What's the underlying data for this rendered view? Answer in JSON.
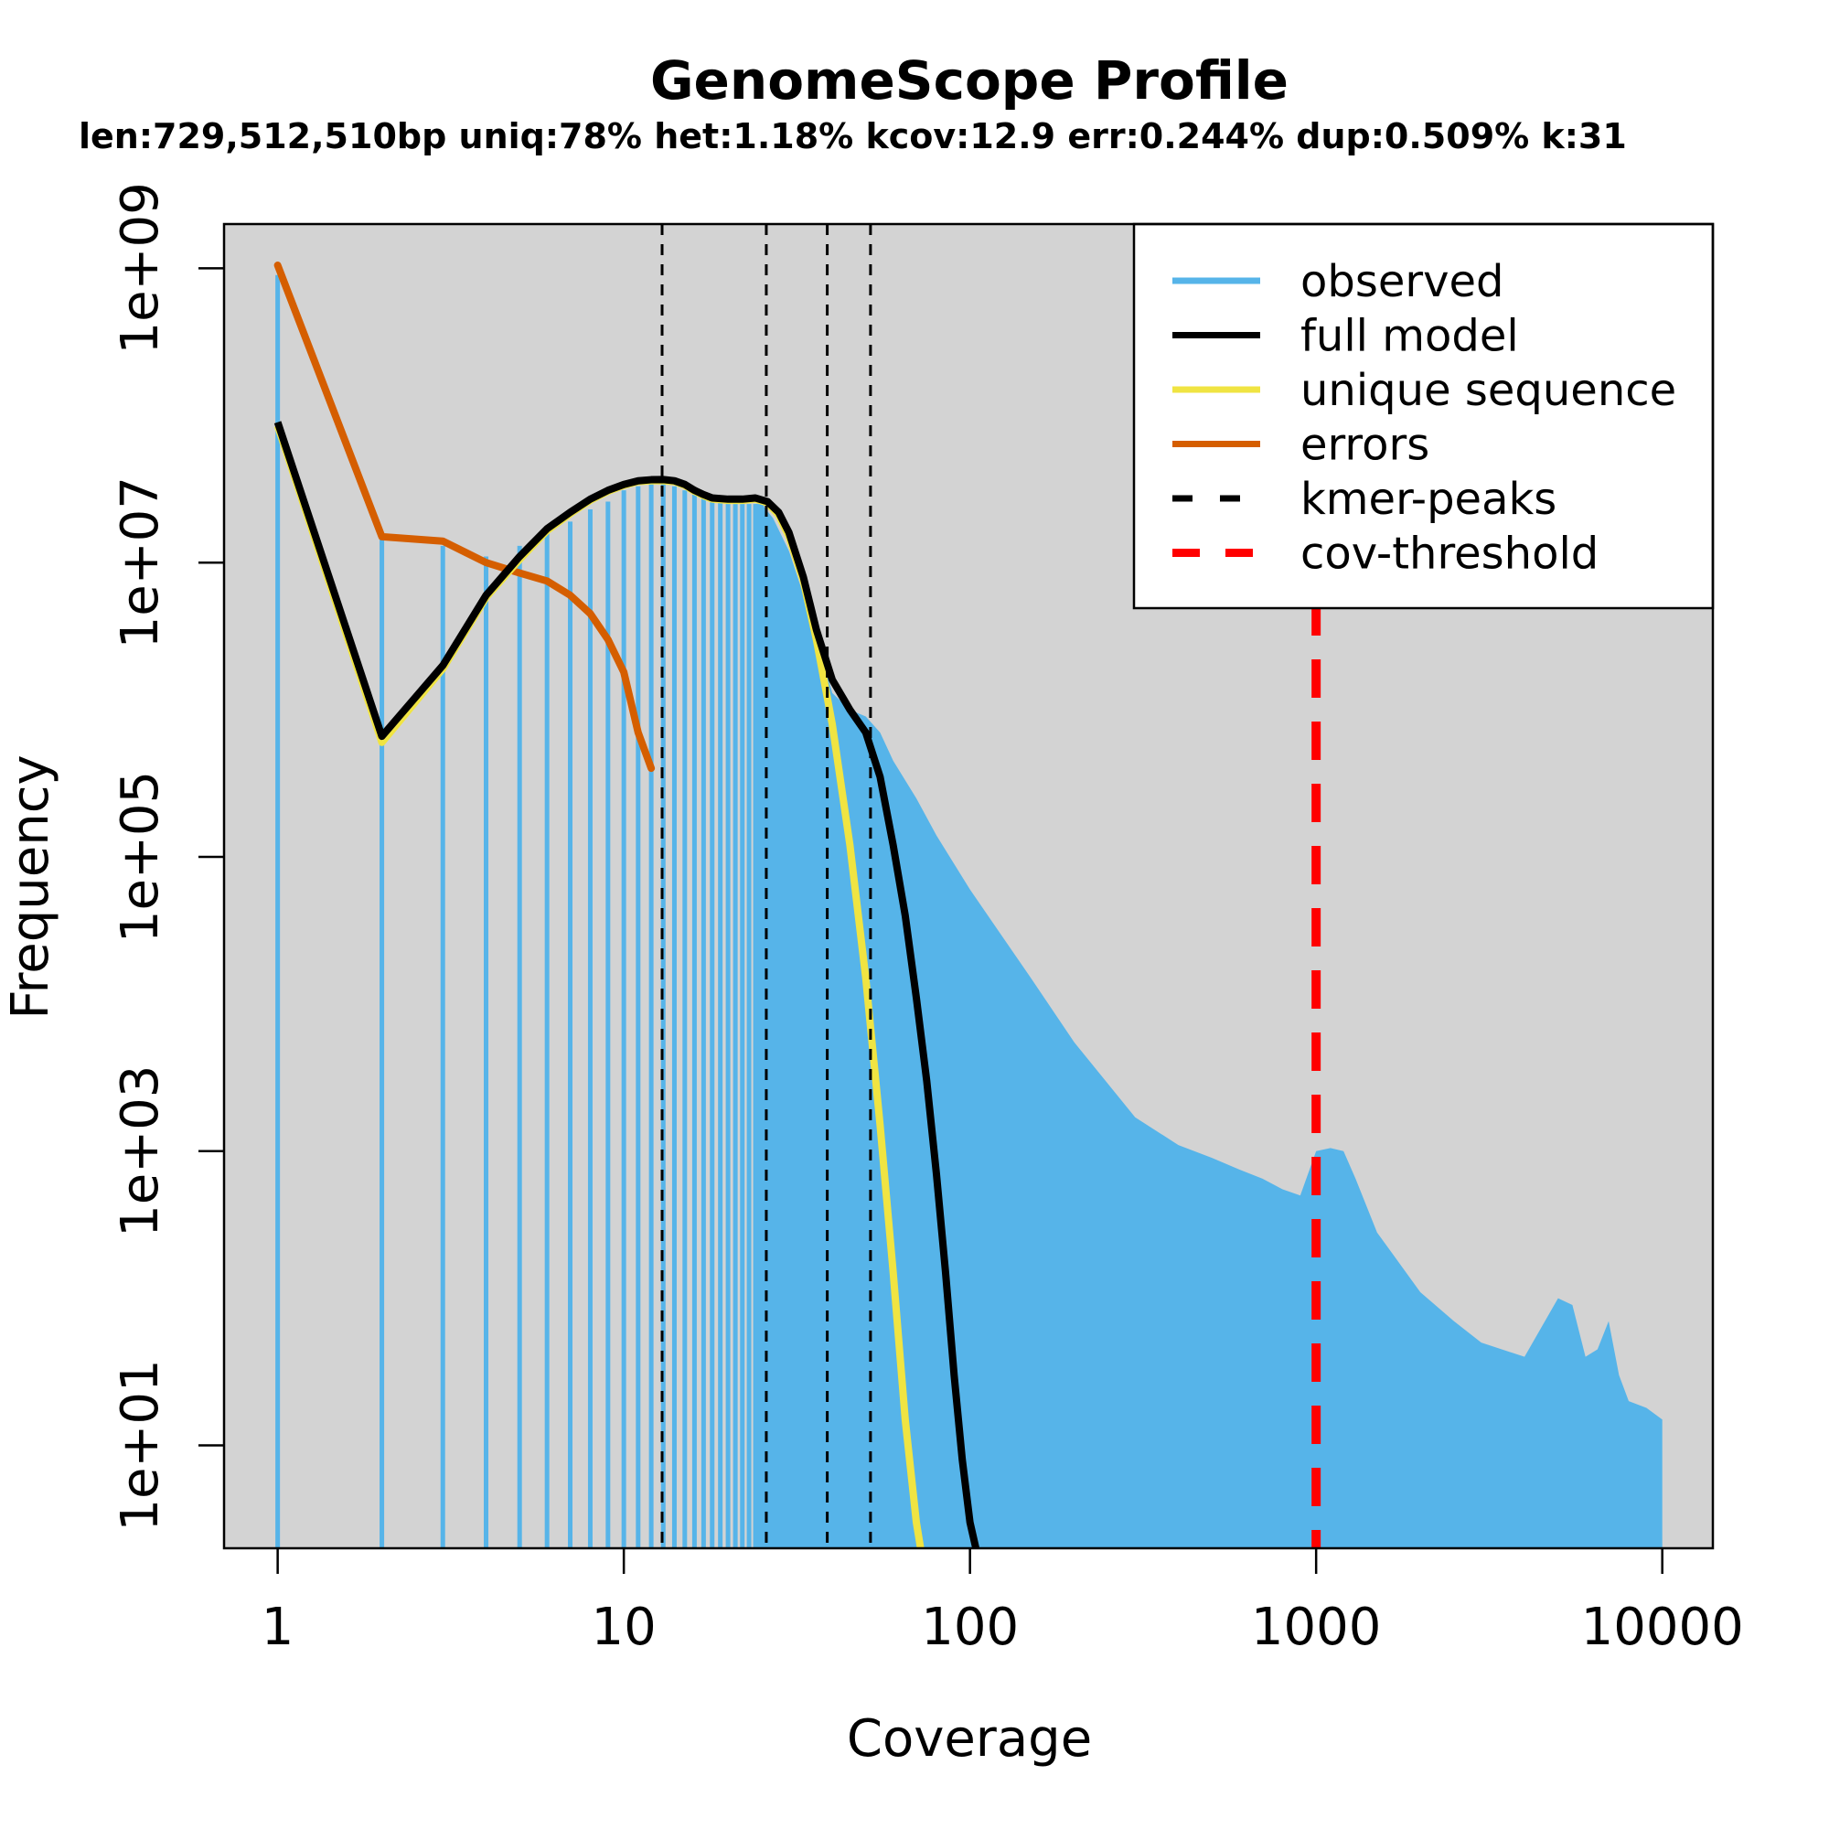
{
  "chart_data": {
    "type": "line",
    "title": "GenomeScope Profile",
    "subtitle": "len:729,512,510bp uniq:78%  het:1.18% kcov:12.9 err:0.244%  dup:0.509%  k:31",
    "xlabel": "Coverage",
    "ylabel": "Frequency",
    "x_scale": "log",
    "y_scale": "log",
    "xlim": [
      0.7,
      14000
    ],
    "ylim": [
      2,
      2000000000
    ],
    "x_ticks": [
      1,
      10,
      100,
      1000,
      10000
    ],
    "x_tick_labels": [
      "1",
      "10",
      "100",
      "1000",
      "10000"
    ],
    "y_ticks": [
      10,
      1000,
      100000,
      10000000,
      1000000000
    ],
    "y_tick_labels": [
      "1e+01",
      "1e+03",
      "1e+05",
      "1e+07",
      "1e+09"
    ],
    "grid": false,
    "legend_position": "top-right",
    "legend": [
      {
        "label": "observed",
        "color": "#56B4E9",
        "style": "solid"
      },
      {
        "label": "full model",
        "color": "#000000",
        "style": "solid"
      },
      {
        "label": "unique sequence",
        "color": "#F0E442",
        "style": "solid"
      },
      {
        "label": "errors",
        "color": "#D55E00",
        "style": "solid"
      },
      {
        "label": "kmer-peaks",
        "color": "#000000",
        "style": "dashed"
      },
      {
        "label": "cov-threshold",
        "color": "#FF0000",
        "style": "dashed"
      }
    ],
    "series": [
      {
        "name": "observed",
        "kind": "histogram",
        "color": "#56B4E9",
        "x": [
          1,
          2,
          3,
          4,
          5,
          6,
          7,
          8,
          9,
          10,
          11,
          12,
          13,
          14,
          15,
          16,
          17,
          18,
          19,
          20,
          21,
          22,
          23,
          24,
          25,
          27,
          30,
          35,
          40,
          45,
          50,
          55,
          60,
          70,
          80,
          100,
          150,
          200,
          300,
          400,
          500,
          600,
          700,
          800,
          900,
          1000,
          1100,
          1200,
          1300,
          1500,
          2000,
          2500,
          3000,
          4000,
          5000,
          5500,
          6000,
          6500,
          7000,
          7500,
          8000,
          9000,
          10000
        ],
        "y": [
          900000000,
          15000000,
          13000000,
          11000000,
          13000000,
          17000000,
          19000000,
          23000000,
          26000000,
          31000000,
          33000000,
          36000000,
          35000000,
          33000000,
          31000000,
          29000000,
          28000000,
          27000000,
          26000000,
          25000000,
          25000000,
          25000000,
          25000000,
          25000000,
          25000000,
          20000000,
          12000000,
          4000000,
          1300000,
          1000000,
          900000,
          700000,
          450000,
          250000,
          140000,
          60000,
          15000,
          5500,
          1700,
          1100,
          900,
          750,
          650,
          550,
          500,
          1000,
          1050,
          1000,
          650,
          280,
          110,
          70,
          50,
          40,
          100,
          90,
          40,
          45,
          70,
          30,
          20,
          18,
          15
        ]
      },
      {
        "name": "full model",
        "kind": "line",
        "color": "#000000",
        "x": [
          1,
          2,
          3,
          4,
          5,
          6,
          7,
          8,
          9,
          10,
          11,
          12,
          13,
          14,
          15,
          16,
          17,
          18,
          20,
          22,
          24,
          26,
          28,
          30,
          33,
          36,
          40,
          45,
          50,
          55,
          60,
          65,
          70,
          75,
          80,
          85,
          90,
          95,
          100,
          104
        ],
        "y": [
          90000000,
          660000,
          2000000,
          6000000,
          11000000,
          17000000,
          22000000,
          27000000,
          31000000,
          34000000,
          36000000,
          36600000,
          36700000,
          36000000,
          34000000,
          31000000,
          29000000,
          27500000,
          27000000,
          27000000,
          27500000,
          26000000,
          22000000,
          16000000,
          8000000,
          3500000,
          1600000,
          1000000,
          700000,
          350000,
          120000,
          40000,
          11000,
          3000,
          700,
          150,
          30,
          8,
          3,
          1.5
        ]
      },
      {
        "name": "unique sequence",
        "kind": "line",
        "color": "#F0E442",
        "x": [
          1,
          2,
          3,
          4,
          5,
          6,
          7,
          8,
          9,
          10,
          11,
          12,
          13,
          14,
          15,
          16,
          17,
          18,
          20,
          22,
          24,
          26,
          28,
          30,
          33,
          36,
          40,
          45,
          50,
          55,
          60,
          65,
          70,
          72
        ],
        "y": [
          85000000,
          600000,
          1900000,
          5800000,
          10500000,
          16500000,
          21500000,
          26500000,
          30500000,
          33500000,
          35500000,
          36000000,
          36000000,
          35500000,
          33500000,
          30500000,
          28500000,
          27000000,
          26500000,
          26500000,
          27000000,
          25500000,
          21000000,
          15000000,
          7500000,
          3000000,
          800000,
          120000,
          15000,
          1500,
          150,
          15,
          3,
          1.5
        ]
      },
      {
        "name": "errors",
        "kind": "line",
        "color": "#D55E00",
        "x": [
          1,
          2,
          3,
          4,
          5,
          6,
          7,
          8,
          9,
          10,
          11,
          12
        ],
        "y": [
          1050000000,
          15000000,
          14000000,
          10000000,
          8500000,
          7500000,
          6000000,
          4500000,
          3000000,
          1800000,
          700000,
          400000
        ]
      }
    ],
    "kmer_peaks": [
      12.9,
      25.8,
      38.7,
      51.6
    ],
    "cov_threshold": 1000,
    "colors": {
      "plot_background": "#D3D3D3",
      "observed": "#56B4E9",
      "full_model": "#000000",
      "unique_sequence": "#F0E442",
      "errors": "#D55E00",
      "kmer_peaks": "#000000",
      "cov_threshold": "#FF0000"
    }
  }
}
